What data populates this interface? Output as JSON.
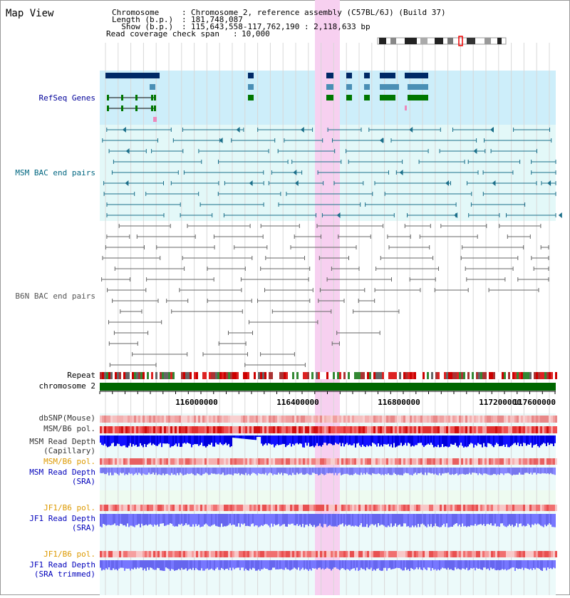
{
  "title": "Map View",
  "info": [
    {
      "label": "Chromosome      ",
      "value": "Chromosome 2, reference assembly (C57BL/6J) (Build 37)"
    },
    {
      "label": "Length (b.p.)   ",
      "value": "181,748,087"
    },
    {
      "label": "  Show (b.p.)   ",
      "value": "115,643,558-117,762,190 : 2,118,633 bp"
    },
    {
      "label": "Read coverage check span",
      "value": "10,000"
    }
  ],
  "tracks": {
    "refseq": "RefSeq Genes",
    "msm_bac": "MSM BAC end pairs",
    "b6n_bac": "B6N BAC end pairs",
    "repeat": "Repeat",
    "chromosome": "chromosome 2",
    "dbsnp": "dbSNP(Mouse)",
    "msm_b6_pol": "MSM/B6 pol.",
    "msm_depth_cap_1": "MSM Read Depth",
    "msm_depth_cap_2": "(Capillary)",
    "msm_b6_pol2": "MSM/B6 pol.",
    "msm_depth_sra_1": "MSM Read Depth",
    "msm_depth_sra_2": "(SRA)",
    "jf1_b6_pol": "JF1/B6 pol.",
    "jf1_depth_sra_1": "JF1 Read Depth",
    "jf1_depth_sra_2": "(SRA)",
    "jf1_b6_pol2": "JF1/B6 pol.",
    "jf1_depth_trim_1": "JF1 Read Depth",
    "jf1_depth_trim_2": "(SRA trimmed)"
  },
  "axis": {
    "ticks": [
      "116000000",
      "116400000",
      "116800000",
      "117200000",
      "117600000"
    ]
  },
  "colors": {
    "refseq_label": "#000099",
    "msm_label": "#006680",
    "b6n_label": "#555555",
    "orange_label": "#dd9900",
    "blue_label": "#0000bb",
    "highlight": "#f7d0f0",
    "chromosome": "#006600"
  }
}
